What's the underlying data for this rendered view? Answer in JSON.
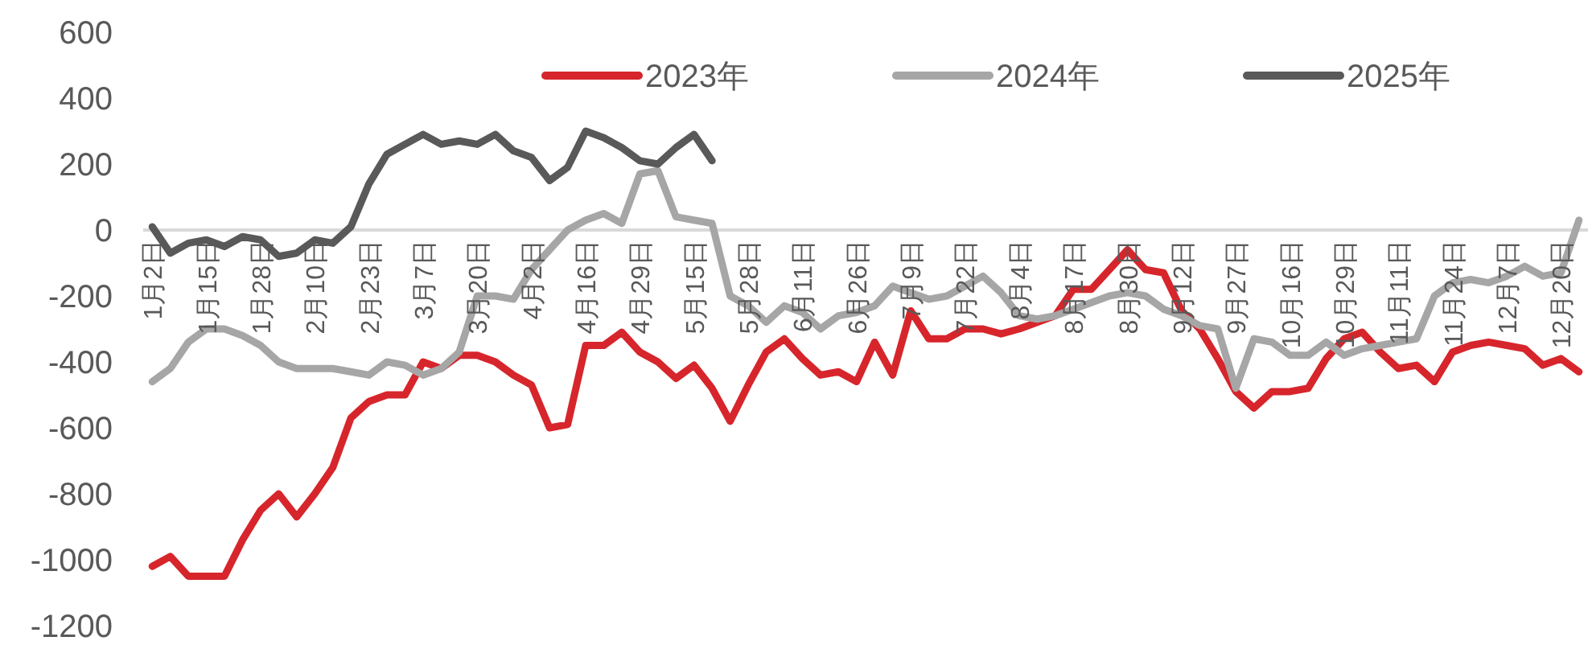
{
  "chart_data": {
    "type": "line",
    "categories": [
      "1月2日",
      null,
      null,
      "1月15日",
      null,
      null,
      "1月28日",
      null,
      null,
      "2月10日",
      null,
      null,
      "2月23日",
      null,
      null,
      "3月7日",
      null,
      null,
      "3月20日",
      null,
      null,
      "4月2日",
      null,
      null,
      "4月16日",
      null,
      null,
      "4月29日",
      null,
      null,
      "5月15日",
      null,
      null,
      "5月28日",
      null,
      null,
      "6月11日",
      null,
      null,
      "6月26日",
      null,
      null,
      "7月9日",
      null,
      null,
      "7月22日",
      null,
      null,
      "8月4日",
      null,
      null,
      "8月17日",
      null,
      null,
      "8月30日",
      null,
      null,
      "9月12日",
      null,
      null,
      "9月27日",
      null,
      null,
      "10月16日",
      null,
      null,
      "10月29日",
      null,
      null,
      "11月11日",
      null,
      null,
      "11月24日",
      null,
      null,
      "12月7日",
      null,
      null,
      "12月20日",
      null
    ],
    "ylim": [
      -1200,
      600
    ],
    "yticks": [
      -1200,
      -1000,
      -800,
      -600,
      -400,
      -200,
      0,
      200,
      400,
      600
    ],
    "grid": false,
    "legend": "top right",
    "line_style": "solid",
    "marker": "none",
    "series": [
      {
        "name": "2023年",
        "color": "#d7252c",
        "values": [
          -1020,
          -990,
          -1050,
          -1050,
          -1050,
          -940,
          -850,
          -800,
          -870,
          -800,
          -720,
          -570,
          -520,
          -500,
          -500,
          -400,
          -420,
          -380,
          -380,
          -400,
          -440,
          -470,
          -600,
          -590,
          -350,
          -350,
          -310,
          -370,
          -400,
          -450,
          -410,
          -480,
          -580,
          -470,
          -370,
          -330,
          -390,
          -440,
          -430,
          -460,
          -340,
          -440,
          -245,
          -330,
          -330,
          -300,
          -300,
          -315,
          -300,
          -280,
          -260,
          -180,
          -180,
          -120,
          -60,
          -120,
          -130,
          -245,
          -300,
          -390,
          -490,
          -540,
          -490,
          -490,
          -480,
          -390,
          -330,
          -310,
          -370,
          -420,
          -410,
          -460,
          -370,
          -350,
          -340,
          -350,
          -360,
          -410,
          -390,
          -430
        ]
      },
      {
        "name": "2024年",
        "color": "#a6a6a6",
        "values": [
          -460,
          -420,
          -340,
          -300,
          -300,
          -320,
          -350,
          -400,
          -420,
          -420,
          -420,
          -430,
          -440,
          -400,
          -410,
          -440,
          -420,
          -370,
          -200,
          -200,
          -210,
          -120,
          -60,
          0,
          30,
          50,
          20,
          170,
          180,
          40,
          30,
          20,
          -200,
          -230,
          -280,
          -230,
          -250,
          -300,
          -260,
          -250,
          -230,
          -170,
          -190,
          -210,
          -200,
          -170,
          -140,
          -190,
          -260,
          -270,
          -260,
          -240,
          -220,
          -200,
          -190,
          -200,
          -240,
          -260,
          -290,
          -300,
          -480,
          -330,
          -340,
          -380,
          -380,
          -340,
          -380,
          -360,
          -350,
          -340,
          -330,
          -200,
          -160,
          -150,
          -160,
          -140,
          -110,
          -140,
          -130,
          30
        ]
      },
      {
        "name": "2025年",
        "color": "#595959",
        "values": [
          10,
          -70,
          -40,
          -30,
          -50,
          -20,
          -30,
          -80,
          -70,
          -30,
          -40,
          10,
          140,
          230,
          260,
          290,
          260,
          270,
          260,
          290,
          240,
          220,
          150,
          190,
          300,
          280,
          250,
          210,
          200,
          250,
          290,
          210,
          null,
          null,
          null,
          null,
          null,
          null,
          null,
          null,
          null,
          null,
          null,
          null,
          null,
          null,
          null,
          null,
          null,
          null,
          null,
          null,
          null,
          null,
          null,
          null,
          null,
          null,
          null,
          null,
          null,
          null,
          null,
          null,
          null,
          null,
          null,
          null,
          null,
          null,
          null,
          null,
          null,
          null,
          null,
          null,
          null,
          null,
          null,
          null
        ]
      }
    ]
  }
}
